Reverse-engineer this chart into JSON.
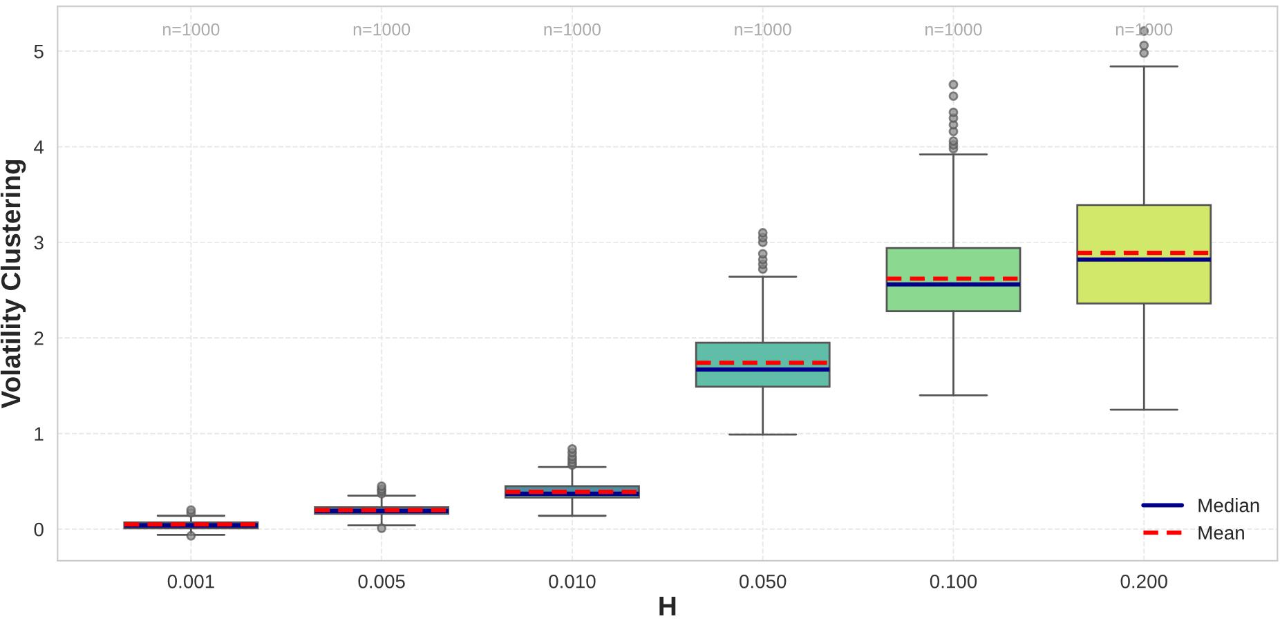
{
  "chart_data": {
    "type": "box",
    "xlabel": "H",
    "ylabel": "Volatility Clustering",
    "categories": [
      "0.001",
      "0.005",
      "0.010",
      "0.050",
      "0.100",
      "0.200"
    ],
    "colors": [
      "#4a5a9a",
      "#4a6f94",
      "#4e8fa0",
      "#5fbda8",
      "#8bd890",
      "#d2e86a"
    ],
    "boxes": [
      {
        "low": -0.06,
        "q1": 0.01,
        "median": 0.04,
        "q3": 0.07,
        "high": 0.14,
        "mean": 0.05,
        "outliers": [
          0.17,
          0.2,
          -0.07
        ]
      },
      {
        "low": 0.04,
        "q1": 0.16,
        "median": 0.19,
        "q3": 0.23,
        "high": 0.35,
        "mean": 0.2,
        "outliers": [
          0.37,
          0.4,
          0.42,
          0.45,
          0.01
        ]
      },
      {
        "low": 0.14,
        "q1": 0.33,
        "median": 0.37,
        "q3": 0.45,
        "high": 0.65,
        "mean": 0.39,
        "outliers": [
          0.67,
          0.7,
          0.73,
          0.76,
          0.8,
          0.84
        ]
      },
      {
        "low": 0.99,
        "q1": 1.49,
        "median": 1.67,
        "q3": 1.95,
        "high": 2.64,
        "mean": 1.74,
        "outliers": [
          2.72,
          2.77,
          2.82,
          2.88,
          3.0,
          3.05,
          3.1
        ]
      },
      {
        "low": 1.4,
        "q1": 2.28,
        "median": 2.56,
        "q3": 2.94,
        "high": 3.92,
        "mean": 2.62,
        "outliers": [
          3.98,
          4.02,
          4.06,
          4.16,
          4.23,
          4.3,
          4.36,
          4.53,
          4.65
        ]
      },
      {
        "low": 1.25,
        "q1": 2.36,
        "median": 2.82,
        "q3": 3.39,
        "high": 4.84,
        "mean": 2.89,
        "outliers": [
          4.98,
          5.06,
          5.21
        ]
      }
    ],
    "annotations": [
      "n=1000",
      "n=1000",
      "n=1000",
      "n=1000",
      "n=1000",
      "n=1000",
      "Median",
      "Mean"
    ],
    "ylim": [
      -0.33,
      5.47
    ],
    "yticks": [
      0,
      1,
      2,
      3,
      4,
      5
    ],
    "grid": true
  }
}
